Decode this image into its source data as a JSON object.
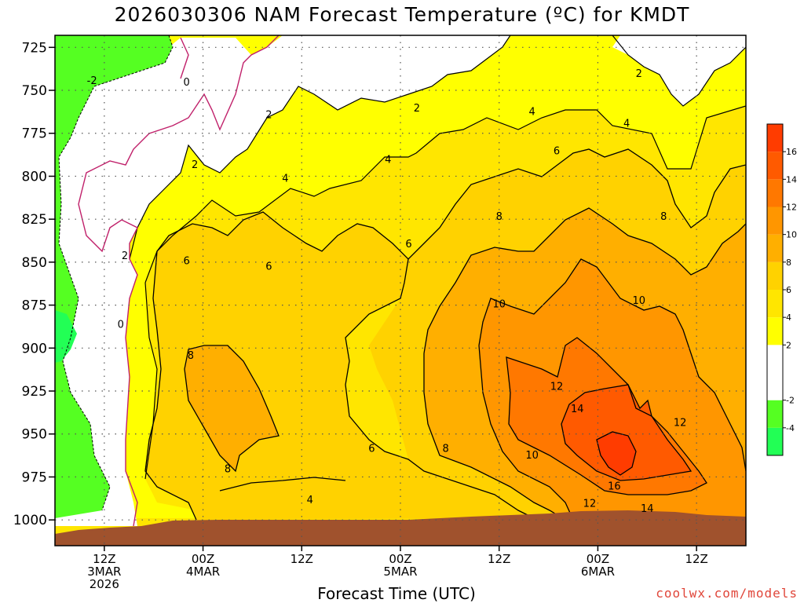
{
  "title": "2026030306 NAM Forecast Temperature (ºC) for KMDT",
  "credit": "coolwx.com/models",
  "chart_data": {
    "type": "heatmap",
    "title": "2026030306 NAM Forecast Temperature (ºC) for KMDT",
    "xlabel": "Forecast Time (UTC)",
    "ylabel": "",
    "y_ticks": [
      "725",
      "750",
      "775",
      "800",
      "825",
      "850",
      "875",
      "900",
      "925",
      "950",
      "975",
      "1000"
    ],
    "y_values": [
      725,
      750,
      775,
      800,
      825,
      850,
      875,
      900,
      925,
      950,
      975,
      1000
    ],
    "ylim": [
      1015,
      718
    ],
    "x_ticks": [
      {
        "hour": 6,
        "lines": [
          "12Z",
          "3MAR",
          "2026"
        ]
      },
      {
        "hour": 18,
        "lines": [
          "00Z",
          "4MAR"
        ]
      },
      {
        "hour": 30,
        "lines": [
          "12Z"
        ]
      },
      {
        "hour": 42,
        "lines": [
          "00Z",
          "5MAR"
        ]
      },
      {
        "hour": 54,
        "lines": [
          "12Z"
        ]
      },
      {
        "hour": 66,
        "lines": [
          "00Z",
          "6MAR"
        ]
      },
      {
        "hour": 78,
        "lines": [
          "12Z"
        ]
      }
    ],
    "xlim": [
      0,
      84
    ],
    "grid": true,
    "colorbar": {
      "bands": [
        {
          "from": -6,
          "to": -4,
          "color": "#22ff55"
        },
        {
          "from": -4,
          "to": -2,
          "color": "#55ff22"
        },
        {
          "from": -2,
          "to": 2,
          "color": "#ffffff"
        },
        {
          "from": 2,
          "to": 4,
          "color": "#ffff00"
        },
        {
          "from": 4,
          "to": 6,
          "color": "#ffe600"
        },
        {
          "from": 6,
          "to": 8,
          "color": "#ffd200"
        },
        {
          "from": 8,
          "to": 10,
          "color": "#ffaf00"
        },
        {
          "from": 10,
          "to": 12,
          "color": "#ff9600"
        },
        {
          "from": 12,
          "to": 14,
          "color": "#ff7800"
        },
        {
          "from": 14,
          "to": 16,
          "color": "#ff5a00"
        },
        {
          "from": 16,
          "to": 18,
          "color": "#ff3c00"
        }
      ],
      "tick_labels": [
        "-4",
        "-2",
        "2",
        "4",
        "6",
        "8",
        "10",
        "12",
        "14",
        "16"
      ]
    },
    "contour_labels": [
      {
        "text": "-2",
        "h": 4.5,
        "p": 744
      },
      {
        "text": "0",
        "h": 16.0,
        "p": 745
      },
      {
        "text": "0",
        "h": 8.0,
        "p": 886
      },
      {
        "text": "2",
        "h": 17.0,
        "p": 793
      },
      {
        "text": "2",
        "h": 26.0,
        "p": 764
      },
      {
        "text": "2",
        "h": 8.5,
        "p": 846
      },
      {
        "text": "2",
        "h": 44.0,
        "p": 760
      },
      {
        "text": "2",
        "h": 71.0,
        "p": 740
      },
      {
        "text": "4",
        "h": 28.0,
        "p": 801
      },
      {
        "text": "4",
        "h": 40.5,
        "p": 790
      },
      {
        "text": "4",
        "h": 58.0,
        "p": 762
      },
      {
        "text": "4",
        "h": 69.5,
        "p": 769
      },
      {
        "text": "4",
        "h": 31.0,
        "p": 988
      },
      {
        "text": "6",
        "h": 16.0,
        "p": 849
      },
      {
        "text": "6",
        "h": 26.0,
        "p": 852
      },
      {
        "text": "6",
        "h": 43.0,
        "p": 839
      },
      {
        "text": "6",
        "h": 61.0,
        "p": 785
      },
      {
        "text": "6",
        "h": 38.5,
        "p": 958
      },
      {
        "text": "8",
        "h": 16.5,
        "p": 904
      },
      {
        "text": "8",
        "h": 21.0,
        "p": 970
      },
      {
        "text": "8",
        "h": 54.0,
        "p": 823
      },
      {
        "text": "8",
        "h": 74.0,
        "p": 823
      },
      {
        "text": "8",
        "h": 47.5,
        "p": 958
      },
      {
        "text": "10",
        "h": 54.0,
        "p": 874
      },
      {
        "text": "10",
        "h": 71.0,
        "p": 872
      },
      {
        "text": "10",
        "h": 58.0,
        "p": 962
      },
      {
        "text": "12",
        "h": 61.0,
        "p": 922
      },
      {
        "text": "12",
        "h": 76.0,
        "p": 943
      },
      {
        "text": "12",
        "h": 65.0,
        "p": 990
      },
      {
        "text": "14",
        "h": 63.5,
        "p": 935
      },
      {
        "text": "14",
        "h": 72.0,
        "p": 993
      },
      {
        "text": "16",
        "h": 68.0,
        "p": 980
      }
    ]
  }
}
